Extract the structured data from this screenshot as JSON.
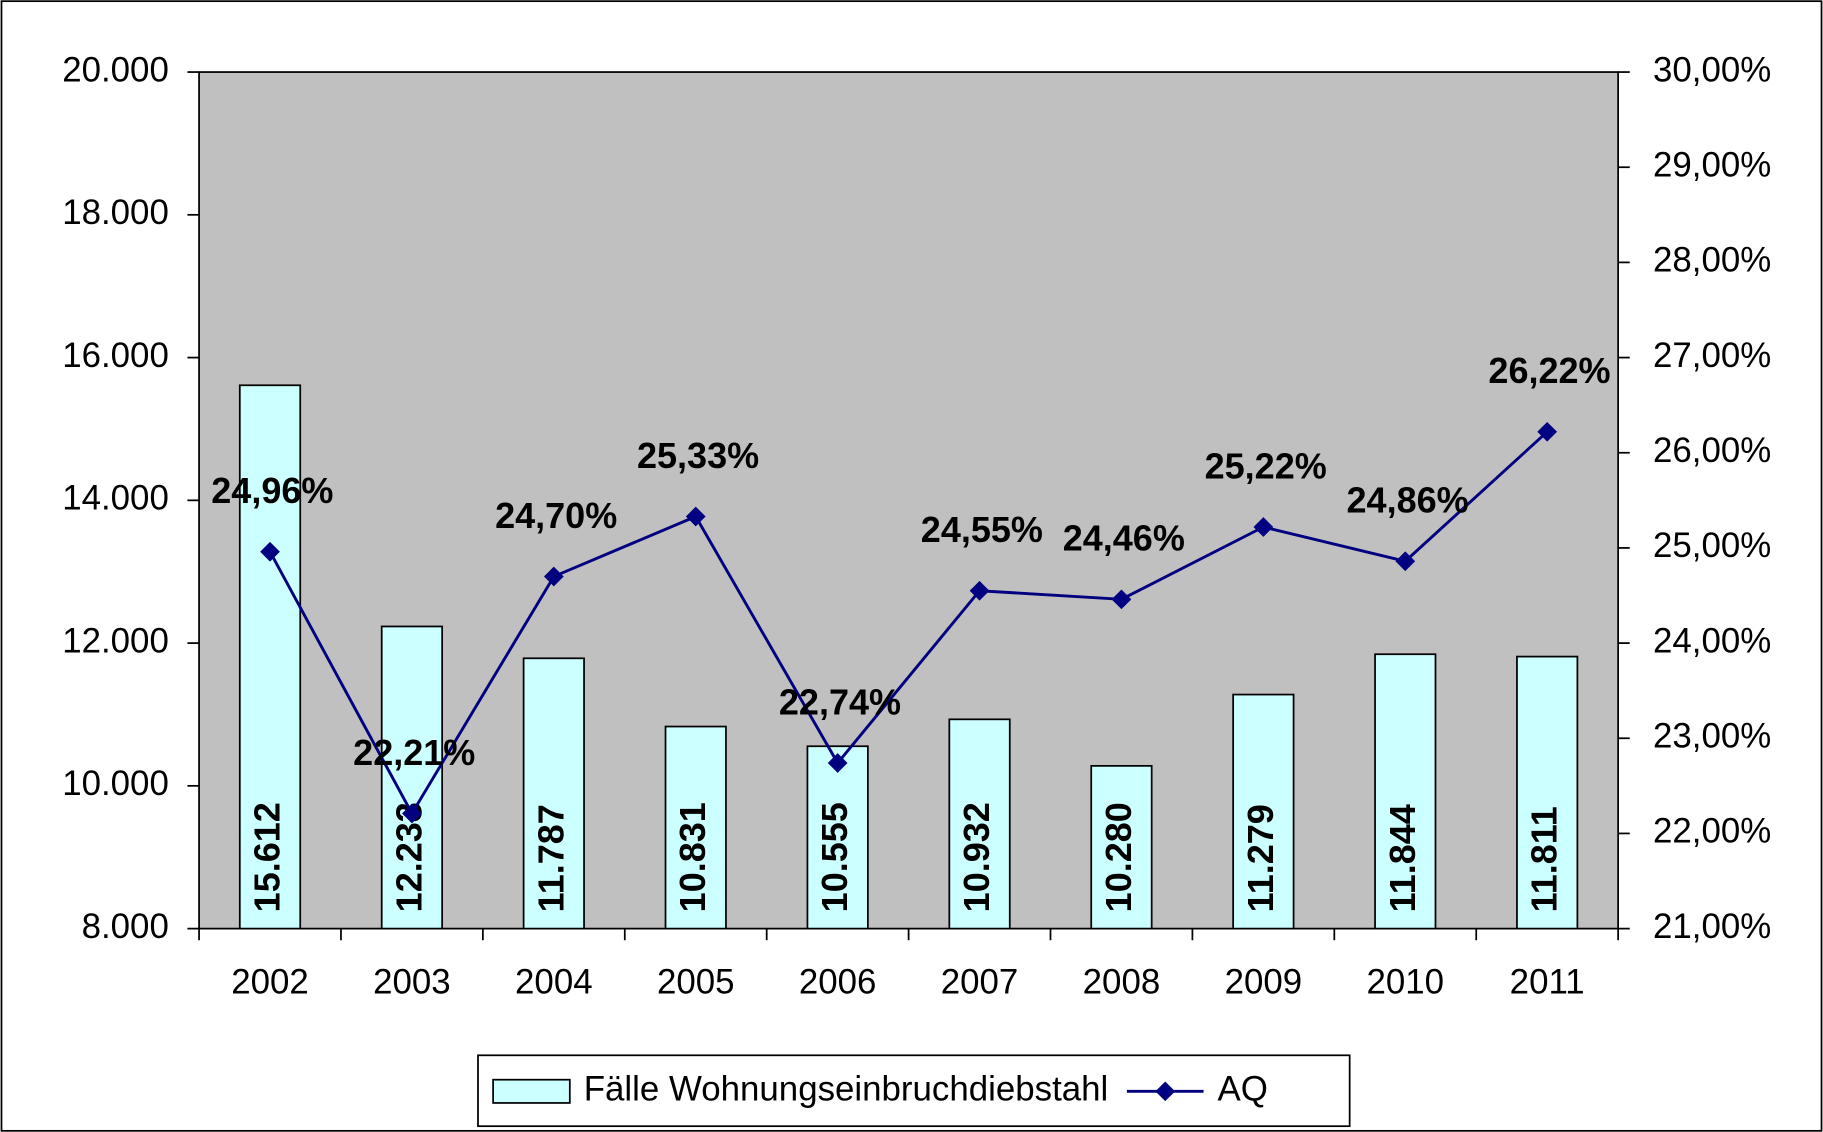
{
  "chart_data": {
    "type": "bar",
    "categories": [
      "2002",
      "2003",
      "2004",
      "2005",
      "2006",
      "2007",
      "2008",
      "2009",
      "2010",
      "2011"
    ],
    "series": [
      {
        "name": "Fälle Wohnungseinbruchdiebstahl",
        "type": "bar",
        "color": "#ccffff",
        "values": [
          15612,
          12233,
          11787,
          10831,
          10555,
          10932,
          10280,
          11279,
          11844,
          11811
        ],
        "value_labels": [
          "15.612",
          "12.233",
          "11.787",
          "10.831",
          "10.555",
          "10.932",
          "10.280",
          "11.279",
          "11.844",
          "11.811"
        ]
      },
      {
        "name": "AQ",
        "type": "line",
        "axis": "y2",
        "color": "#000080",
        "values": [
          24.96,
          22.21,
          24.7,
          25.33,
          22.74,
          24.55,
          24.46,
          25.22,
          24.86,
          26.22
        ],
        "value_labels": [
          "24,96%",
          "22,21%",
          "24,70%",
          "25,33%",
          "22,74%",
          "24,55%",
          "24,46%",
          "25,22%",
          "24,86%",
          "26,22%"
        ]
      }
    ],
    "ylim": [
      8000,
      20000
    ],
    "yticks": [
      {
        "value": 8000,
        "label": "8.000"
      },
      {
        "value": 10000,
        "label": "10.000"
      },
      {
        "value": 12000,
        "label": "12.000"
      },
      {
        "value": 14000,
        "label": "14.000"
      },
      {
        "value": 16000,
        "label": "16.000"
      },
      {
        "value": 18000,
        "label": "18.000"
      },
      {
        "value": 20000,
        "label": "20.000"
      }
    ],
    "y2lim": [
      21,
      30
    ],
    "y2ticks": [
      {
        "value": 21,
        "label": "21,00%"
      },
      {
        "value": 22,
        "label": "22,00%"
      },
      {
        "value": 23,
        "label": "23,00%"
      },
      {
        "value": 24,
        "label": "24,00%"
      },
      {
        "value": 25,
        "label": "25,00%"
      },
      {
        "value": 26,
        "label": "26,00%"
      },
      {
        "value": 27,
        "label": "27,00%"
      },
      {
        "value": 28,
        "label": "28,00%"
      },
      {
        "value": 29,
        "label": "29,00%"
      },
      {
        "value": 30,
        "label": "30,00%"
      }
    ],
    "plot_background": "#c0c0c0",
    "legend": "bottom"
  }
}
